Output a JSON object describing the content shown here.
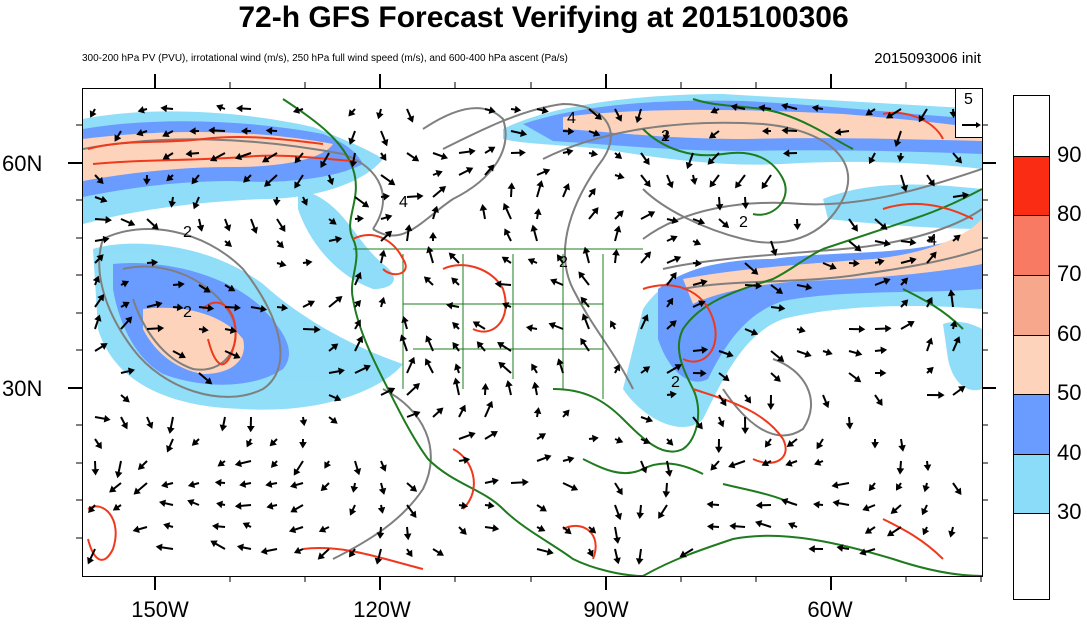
{
  "header": {
    "title": "72-h GFS Forecast Verifying at 2015100306",
    "subtitle": "300-200 hPa PV (PVU), irrotational wind (m/s), 250 hPa full wind speed (m/s), and 600-400 hPa ascent (Pa/s)",
    "init_label": "2015093006 init"
  },
  "map": {
    "lat_labels": [
      "60N",
      "30N"
    ],
    "lon_labels": [
      "150W",
      "120W",
      "90W",
      "60W"
    ],
    "contour_labels": [
      "2",
      "2",
      "4",
      "4",
      "2",
      "2",
      "2",
      "4",
      "2"
    ],
    "reference_vector": "5"
  },
  "colorbar": {
    "labels": [
      "90",
      "80",
      "70",
      "60",
      "50",
      "40",
      "30"
    ],
    "colors": [
      "#ffffff",
      "#fa2c14",
      "#f87a62",
      "#f6a78c",
      "#fdd4bb",
      "#6a9bff",
      "#8adcf8",
      "#ffffff"
    ]
  },
  "colors": {
    "coast": "#1e7b1e",
    "pv_contour": "#7f7f7f",
    "ascent": "#f0391c",
    "vector": "#000000"
  }
}
